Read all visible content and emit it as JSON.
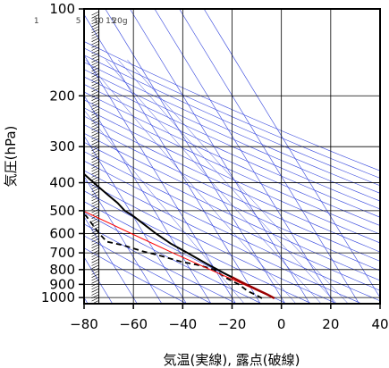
{
  "chart_data": {
    "type": "line",
    "subtype": "skew-T log-P thermodynamic diagram",
    "xlabel": "気温(実線), 露点(破線)",
    "ylabel": "気圧(hPa)",
    "xlim": [
      -80,
      40
    ],
    "ylim": [
      1050,
      100
    ],
    "y_scale": "log",
    "grid": true,
    "x_ticks": [
      "−80",
      "−60",
      "−40",
      "−20",
      "0",
      "20",
      "40"
    ],
    "x_tick_values": [
      -80,
      -60,
      -40,
      -20,
      0,
      20,
      40
    ],
    "y_ticks": [
      "100",
      "200",
      "300",
      "400",
      "500",
      "600",
      "700",
      "800",
      "900",
      "1000"
    ],
    "y_tick_values": [
      100,
      200,
      300,
      400,
      500,
      600,
      700,
      800,
      900,
      1000
    ],
    "mixing_ratio_labels": [
      "1",
      "5",
      "10",
      "15",
      "20g"
    ],
    "mixing_ratio_values": [
      1,
      5,
      10,
      15,
      20
    ],
    "colors": {
      "temperature": "#000000",
      "dewpoint": "#000000",
      "parcel": "#ff0000",
      "lowest_layer": "#990000",
      "background_lines": "#3344dd",
      "grid": "#000000",
      "wind_barbs": "#000000"
    },
    "series": [
      {
        "style": "solid",
        "points": [
          {
            "p": 1005,
            "t": -3
          },
          {
            "p": 975,
            "t": -5
          },
          {
            "p": 950,
            "t": -7
          },
          {
            "p": 925,
            "t": -9
          },
          {
            "p": 900,
            "t": -11
          },
          {
            "p": 875,
            "t": -13
          },
          {
            "p": 850,
            "t": -15
          },
          {
            "p": 825,
            "t": -17
          },
          {
            "p": 800,
            "t": -19
          },
          {
            "p": 775,
            "t": -21
          },
          {
            "p": 750,
            "t": -23
          },
          {
            "p": 725,
            "t": -25
          },
          {
            "p": 700,
            "t": -27
          },
          {
            "p": 650,
            "t": -31.5
          },
          {
            "p": 600,
            "t": -35
          },
          {
            "p": 550,
            "t": -38
          },
          {
            "p": 520,
            "t": -40
          },
          {
            "p": 500,
            "t": -42
          },
          {
            "p": 470,
            "t": -43
          },
          {
            "p": 440,
            "t": -45
          },
          {
            "p": 410,
            "t": -47
          },
          {
            "p": 380,
            "t": -49
          },
          {
            "p": 350,
            "t": -51
          },
          {
            "p": 320,
            "t": -52.5
          },
          {
            "p": 290,
            "t": -53
          },
          {
            "p": 250,
            "t": -54
          },
          {
            "p": 215,
            "t": -55
          },
          {
            "p": 195,
            "t": -51
          },
          {
            "p": 180,
            "t": -50
          },
          {
            "p": 165,
            "t": -47
          },
          {
            "p": 150,
            "t": -46
          },
          {
            "p": 135,
            "t": -50
          },
          {
            "p": 120,
            "t": -53
          },
          {
            "p": 110,
            "t": -55
          },
          {
            "p": 100,
            "t": -55
          }
        ]
      },
      {
        "style": "dashed",
        "points": [
          {
            "p": 1005,
            "t": -8
          },
          {
            "p": 975,
            "t": -10
          },
          {
            "p": 950,
            "t": -12
          },
          {
            "p": 925,
            "t": -13
          },
          {
            "p": 900,
            "t": -14
          },
          {
            "p": 875,
            "t": -16
          },
          {
            "p": 850,
            "t": -18
          },
          {
            "p": 825,
            "t": -19
          },
          {
            "p": 800,
            "t": -20.5
          },
          {
            "p": 790,
            "t": -22
          },
          {
            "p": 770,
            "t": -26
          },
          {
            "p": 750,
            "t": -32
          },
          {
            "p": 720,
            "t": -38
          },
          {
            "p": 690,
            "t": -45
          },
          {
            "p": 660,
            "t": -51
          },
          {
            "p": 640,
            "t": -57
          },
          {
            "p": 600,
            "t": -58
          },
          {
            "p": 560,
            "t": -58.5
          },
          {
            "p": 520,
            "t": -59
          },
          {
            "p": 500,
            "t": -65
          },
          {
            "p": 470,
            "t": -72
          },
          {
            "p": 450,
            "t": -73
          },
          {
            "p": 420,
            "t": -74
          },
          {
            "p": 400,
            "t": -78
          },
          {
            "p": 390,
            "t": -75
          },
          {
            "p": 400,
            "t": -69
          }
        ]
      },
      {
        "style": "solid-red",
        "points": [
          {
            "p": 1005,
            "t": -3
          },
          {
            "p": 900,
            "t": -12
          },
          {
            "p": 800,
            "t": -22
          },
          {
            "p": 700,
            "t": -33
          },
          {
            "p": 600,
            "t": -45
          },
          {
            "p": 500,
            "t": -59
          },
          {
            "p": 400,
            "t": -77
          },
          {
            "p": 300,
            "t": -98
          }
        ]
      }
    ],
    "wind_barb_column": "left edge, x ≈ −74"
  }
}
